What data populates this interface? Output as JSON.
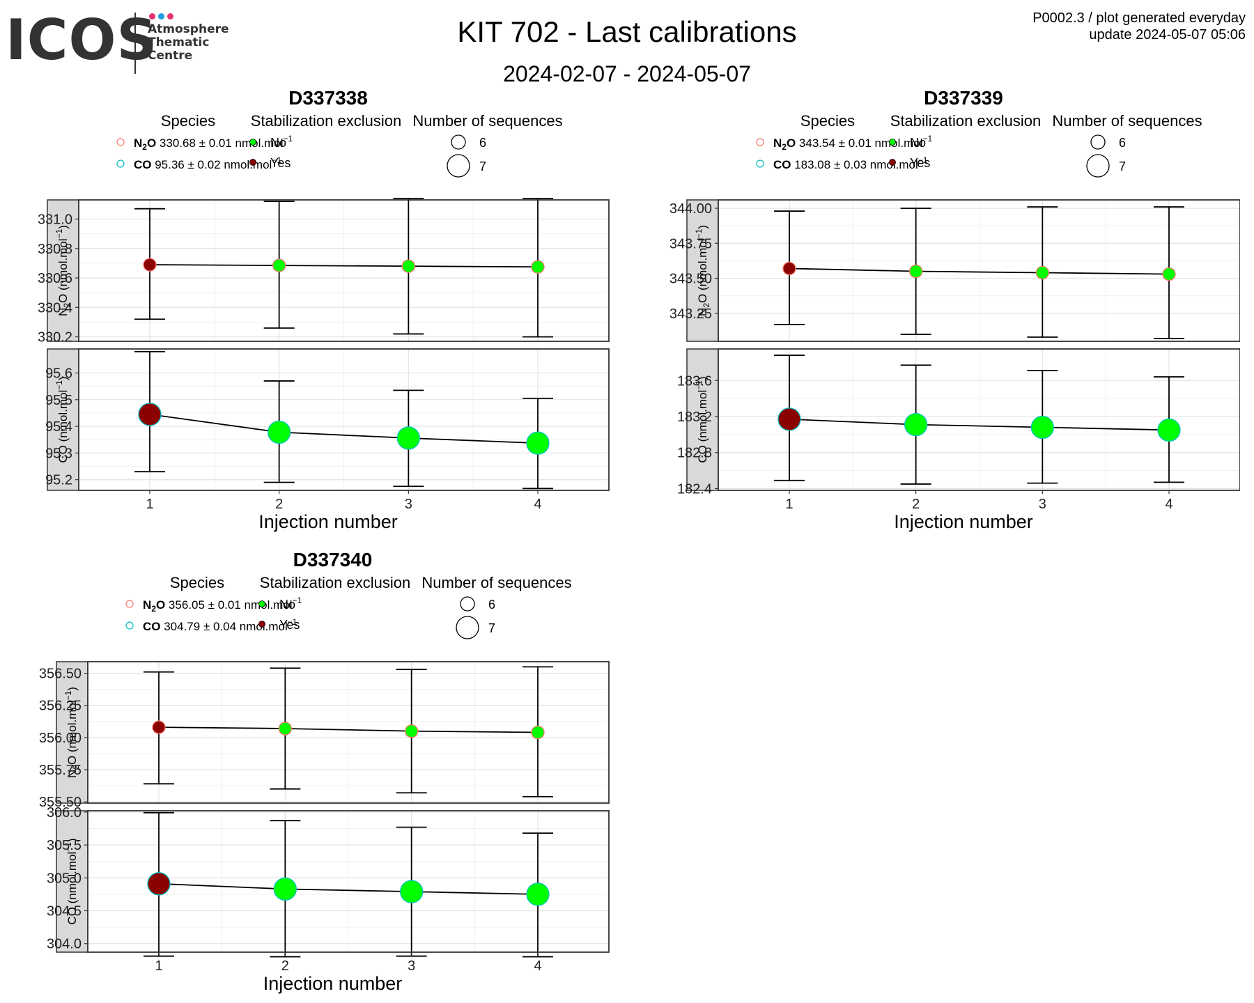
{
  "logo": {
    "word": "ICOS",
    "lines": [
      "Atmosphere",
      "Thematic",
      "Centre"
    ],
    "dot_colors": [
      "#e8336e",
      "#1e9de3",
      "#e8336e"
    ]
  },
  "header": {
    "title": "KIT 702 - Last calibrations",
    "date_range": "2024-02-07 - 2024-05-07",
    "meta_line1": "P0002.3 / plot generated everyday",
    "meta_line2": "update  2024-05-07 05:06"
  },
  "colors": {
    "n2o_legend": "#f8766d",
    "co_legend": "#00bfc4",
    "no_exclusion": "#00ff00",
    "yes_exclusion": "#8b0000"
  },
  "chart_data": [
    {
      "type": "scatter",
      "title": "D337338",
      "xlabel": "Injection number",
      "x": [
        1,
        2,
        3,
        4
      ],
      "legend": {
        "species_title": "Species",
        "stab_title": "Stabilization exclusion",
        "stab_items": [
          "No",
          "Yes"
        ],
        "nseq_title": "Number of sequences",
        "nseq_items": [
          "6",
          "7"
        ],
        "n2o": {
          "name": "N2O",
          "value": "330.68",
          "pm": "±",
          "err": "0.01",
          "unit": "nmol.mol",
          "exp": "−1"
        },
        "co": {
          "name": "CO",
          "value": "95.36",
          "pm": "±",
          "err": "0.02",
          "unit": "nmol.mol",
          "exp": "−1"
        }
      },
      "facets": [
        {
          "ylabel": "N2O (nmol.mol-1)",
          "ylim": [
            330.17,
            331.13
          ],
          "yticks": [
            330.2,
            330.4,
            330.6,
            330.8,
            331.0
          ],
          "ytick_labels": [
            "330.2",
            "330.4",
            "330.6",
            "330.8",
            "331.0"
          ],
          "y": [
            330.69,
            330.685,
            330.68,
            330.675
          ],
          "lower": [
            330.32,
            330.26,
            330.22,
            330.2
          ],
          "upper": [
            331.07,
            331.12,
            331.14,
            331.14
          ],
          "exclusion": [
            "Yes",
            "No",
            "No",
            "No"
          ],
          "sequences": [
            6,
            6,
            6,
            6
          ]
        },
        {
          "ylabel": "CO (nmol.mol-1)",
          "ylim": [
            95.16,
            95.69
          ],
          "yticks": [
            95.2,
            95.3,
            95.4,
            95.5,
            95.6
          ],
          "ytick_labels": [
            "95.2",
            "95.3",
            "95.4",
            "95.5",
            "95.6"
          ],
          "y": [
            95.445,
            95.378,
            95.356,
            95.337
          ],
          "lower": [
            95.23,
            95.19,
            95.175,
            95.167
          ],
          "upper": [
            95.68,
            95.57,
            95.535,
            95.505
          ],
          "exclusion": [
            "Yes",
            "No",
            "No",
            "No"
          ],
          "sequences": [
            7,
            7,
            7,
            7
          ]
        }
      ]
    },
    {
      "type": "scatter",
      "title": "D337339",
      "xlabel": "Injection number",
      "x": [
        1,
        2,
        3,
        4
      ],
      "legend": {
        "species_title": "Species",
        "stab_title": "Stabilization exclusion",
        "stab_items": [
          "No",
          "Yes"
        ],
        "nseq_title": "Number of sequences",
        "nseq_items": [
          "6",
          "7"
        ],
        "n2o": {
          "name": "N2O",
          "value": "343.54",
          "pm": "±",
          "err": "0.01",
          "unit": "nmol.mol",
          "exp": "−1"
        },
        "co": {
          "name": "CO",
          "value": "183.08",
          "pm": "±",
          "err": "0.03",
          "unit": "nmol.mol",
          "exp": "−1"
        }
      },
      "facets": [
        {
          "ylabel": "N2O (nmol.mol-1)",
          "ylim": [
            343.05,
            344.06
          ],
          "yticks": [
            343.25,
            343.5,
            343.75,
            344.0
          ],
          "ytick_labels": [
            "343.25",
            "343.50",
            "343.75",
            "344.00"
          ],
          "y": [
            343.57,
            343.55,
            343.54,
            343.53
          ],
          "lower": [
            343.17,
            343.1,
            343.08,
            343.07
          ],
          "upper": [
            343.98,
            344.0,
            344.01,
            344.01
          ],
          "exclusion": [
            "Yes",
            "No",
            "No",
            "No"
          ],
          "sequences": [
            6,
            6,
            6,
            6
          ]
        },
        {
          "ylabel": "CO (nmol.mol-1)",
          "ylim": [
            182.38,
            183.95
          ],
          "yticks": [
            182.4,
            182.8,
            183.2,
            183.6
          ],
          "ytick_labels": [
            "182.4",
            "182.8",
            "183.2",
            "183.6"
          ],
          "y": [
            183.17,
            183.11,
            183.08,
            183.05
          ],
          "lower": [
            182.49,
            182.45,
            182.46,
            182.47
          ],
          "upper": [
            183.88,
            183.77,
            183.71,
            183.64
          ],
          "exclusion": [
            "Yes",
            "No",
            "No",
            "No"
          ],
          "sequences": [
            7,
            7,
            7,
            7
          ]
        }
      ]
    },
    {
      "type": "scatter",
      "title": "D337340",
      "xlabel": "Injection number",
      "x": [
        1,
        2,
        3,
        4
      ],
      "legend": {
        "species_title": "Species",
        "stab_title": "Stabilization exclusion",
        "stab_items": [
          "No",
          "Yes"
        ],
        "nseq_title": "Number of sequences",
        "nseq_items": [
          "6",
          "7"
        ],
        "n2o": {
          "name": "N2O",
          "value": "356.05",
          "pm": "±",
          "err": "0.01",
          "unit": "nmol.mol",
          "exp": "−1"
        },
        "co": {
          "name": "CO",
          "value": "304.79",
          "pm": "±",
          "err": "0.04",
          "unit": "nmol.mol",
          "exp": "−1"
        }
      },
      "facets": [
        {
          "ylabel": "N2O (nmol.mol-1)",
          "ylim": [
            355.49,
            356.59
          ],
          "yticks": [
            355.5,
            355.75,
            356.0,
            356.25,
            356.5
          ],
          "ytick_labels": [
            "355.50",
            "355.75",
            "356.00",
            "356.25",
            "356.50"
          ],
          "y": [
            356.08,
            356.07,
            356.05,
            356.04
          ],
          "lower": [
            355.64,
            355.6,
            355.57,
            355.54
          ],
          "upper": [
            356.51,
            356.54,
            356.53,
            356.55
          ],
          "exclusion": [
            "Yes",
            "No",
            "No",
            "No"
          ],
          "sequences": [
            6,
            6,
            6,
            6
          ]
        },
        {
          "ylabel": "CO (nmol.mol-1)",
          "ylim": [
            303.87,
            306.02
          ],
          "yticks": [
            304.0,
            304.5,
            305.0,
            305.5,
            306.0
          ],
          "ytick_labels": [
            "304.0",
            "304.5",
            "305.0",
            "305.5",
            "306.0"
          ],
          "y": [
            304.91,
            304.83,
            304.79,
            304.75
          ],
          "lower": [
            303.81,
            303.8,
            303.81,
            303.8
          ],
          "upper": [
            305.99,
            305.87,
            305.77,
            305.68
          ],
          "exclusion": [
            "Yes",
            "No",
            "No",
            "No"
          ],
          "sequences": [
            7,
            7,
            7,
            7
          ]
        }
      ]
    }
  ]
}
